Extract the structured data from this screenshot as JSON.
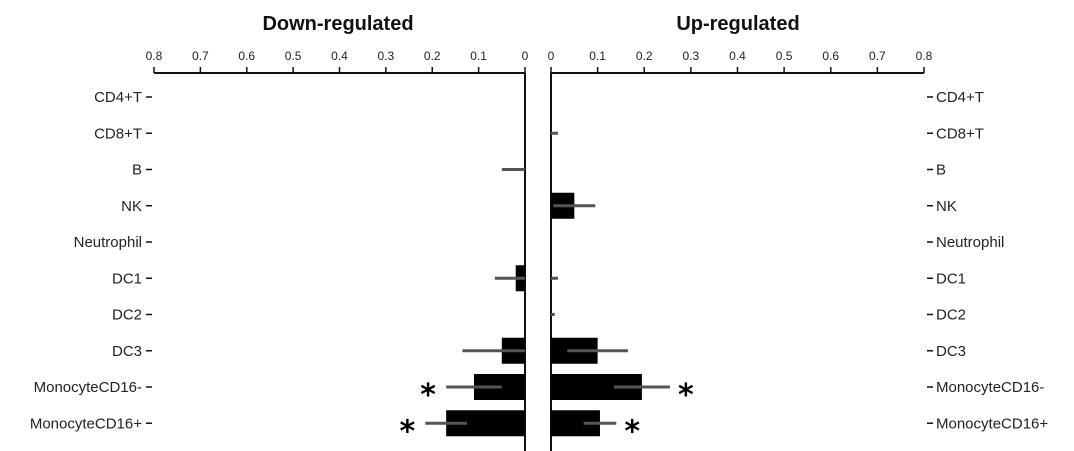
{
  "chart_data": [
    {
      "type": "bar",
      "orientation": "horizontal",
      "direction": "reversed",
      "title": "Down-regulated",
      "categories": [
        "CD4+T",
        "CD8+T",
        "B",
        "NK",
        "Neutrophil",
        "DC1",
        "DC2",
        "DC3",
        "MonocyteCD16-",
        "MonocyteCD16+"
      ],
      "values": [
        0,
        0,
        0,
        0,
        0,
        0.02,
        0,
        0.05,
        0.11,
        0.17
      ],
      "errors": [
        0,
        0,
        0.05,
        0,
        0,
        0.045,
        0,
        0.085,
        0.06,
        0.045
      ],
      "xlim": [
        0,
        0.8
      ],
      "ticks": [
        "0.8",
        "0.7",
        "0.6",
        "0.5",
        "0.4",
        "0.3",
        "0.2",
        "0.1",
        "0"
      ],
      "significant": [
        false,
        false,
        false,
        false,
        false,
        false,
        false,
        false,
        true,
        true
      ],
      "marker": "*"
    },
    {
      "type": "bar",
      "orientation": "horizontal",
      "direction": "normal",
      "title": "Up-regulated",
      "categories": [
        "CD4+T",
        "CD8+T",
        "B",
        "NK",
        "Neutrophil",
        "DC1",
        "DC2",
        "DC3",
        "MonocyteCD16-",
        "MonocyteCD16+"
      ],
      "values": [
        0,
        0,
        0,
        0.05,
        0,
        0,
        0,
        0.1,
        0.195,
        0.105
      ],
      "errors": [
        0,
        0.015,
        0,
        0.045,
        0,
        0.015,
        0.008,
        0.065,
        0.06,
        0.035
      ],
      "xlim": [
        0,
        0.8
      ],
      "ticks": [
        "0",
        "0.1",
        "0.2",
        "0.3",
        "0.4",
        "0.5",
        "0.6",
        "0.7",
        "0.8"
      ],
      "significant": [
        false,
        false,
        false,
        false,
        false,
        false,
        false,
        false,
        true,
        true
      ],
      "marker": "*"
    }
  ]
}
